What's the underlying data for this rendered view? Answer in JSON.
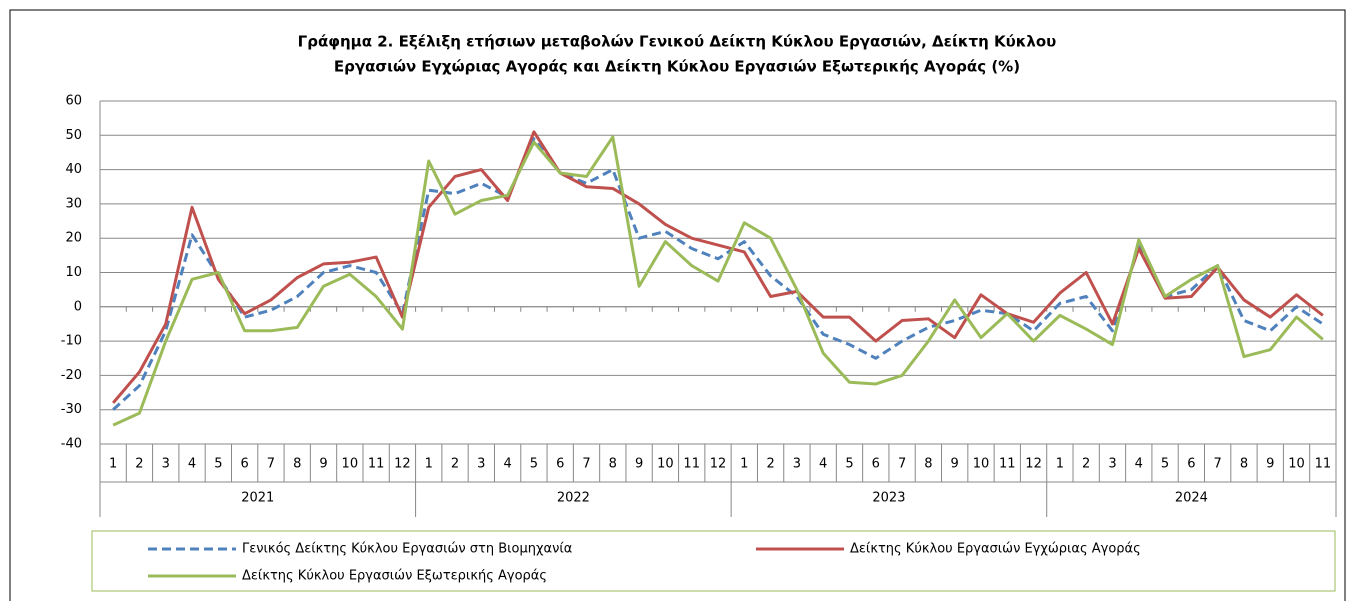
{
  "chart_data": {
    "type": "line",
    "title": [
      "Γράφημα 2. Εξέλιξη ετήσιων μεταβολών Γενικού Δείκτη Κύκλου Εργασιών,  Δείκτη Κύκλου",
      "Εργασιών Εγχώριας Αγοράς και Δείκτη Κύκλου Εργασιών Εξωτερικής Αγοράς  (%)"
    ],
    "categories": [
      "1",
      "2",
      "3",
      "4",
      "5",
      "6",
      "7",
      "8",
      "9",
      "10",
      "11",
      "12",
      "1",
      "2",
      "3",
      "4",
      "5",
      "6",
      "7",
      "8",
      "9",
      "10",
      "11",
      "12",
      "1",
      "2",
      "3",
      "4",
      "5",
      "6",
      "7",
      "8",
      "9",
      "10",
      "11",
      "12",
      "1",
      "2",
      "3",
      "4",
      "5",
      "6",
      "7",
      "8",
      "9",
      "10",
      "11"
    ],
    "groups": [
      {
        "label": "2021",
        "count": 12
      },
      {
        "label": "2022",
        "count": 12
      },
      {
        "label": "2023",
        "count": 12
      },
      {
        "label": "2024",
        "count": 11
      }
    ],
    "ylim": [
      -40,
      60
    ],
    "yticks": [
      -40,
      -30,
      -20,
      -10,
      0,
      10,
      20,
      30,
      40,
      50,
      60
    ],
    "grid": true,
    "series": [
      {
        "name": "Γενικός Δείκτης Κύκλου Εργασιών στη Βιομηχανία",
        "color": "#4f81bd",
        "dash": true,
        "values": [
          -30,
          -23,
          -7,
          21,
          9,
          -3,
          -1,
          3,
          10,
          12,
          10,
          -2,
          34,
          33,
          36,
          32,
          49,
          39,
          36,
          40,
          20,
          22,
          17,
          14,
          19,
          9,
          3,
          -8,
          -11,
          -15,
          -10,
          -6,
          -4,
          -1,
          -2,
          -7,
          1,
          3,
          -7,
          18,
          3,
          5,
          12,
          -4,
          -7,
          0,
          -5
        ]
      },
      {
        "name": "Δείκτης Κύκλου Εργασιών  Εγχώριας Αγοράς",
        "color": "#c0504d",
        "dash": false,
        "values": [
          -28,
          -19,
          -5,
          29,
          8,
          -2,
          2,
          8.5,
          12.5,
          13,
          14.5,
          -3,
          29,
          38,
          40,
          31,
          51,
          39,
          35,
          34.5,
          30,
          24,
          20,
          18,
          16,
          3,
          4.5,
          -3,
          -3,
          -10,
          -4,
          -3.5,
          -9,
          3.5,
          -2,
          -4.5,
          4,
          10,
          -5,
          17,
          2.5,
          3,
          11.5,
          2,
          -3,
          3.5,
          -2.5
        ]
      },
      {
        "name": "Δείκτης Κύκλου Εργασιών  Εξωτερικής Αγοράς",
        "color": "#9bbb59",
        "dash": false,
        "values": [
          -34.5,
          -31,
          -10,
          8,
          10,
          -7,
          -7,
          -6,
          6,
          9.5,
          3,
          -6.5,
          42.5,
          27,
          31,
          32.5,
          48,
          39,
          38,
          49.5,
          6,
          19,
          12,
          7.5,
          24.5,
          20,
          5,
          -13.5,
          -22,
          -22.5,
          -20,
          -10,
          2,
          -9,
          -2,
          -10,
          -2.5,
          -6.5,
          -11,
          19.5,
          3,
          8,
          12,
          -14.5,
          -12.5,
          -3,
          -9.5
        ]
      }
    ]
  }
}
